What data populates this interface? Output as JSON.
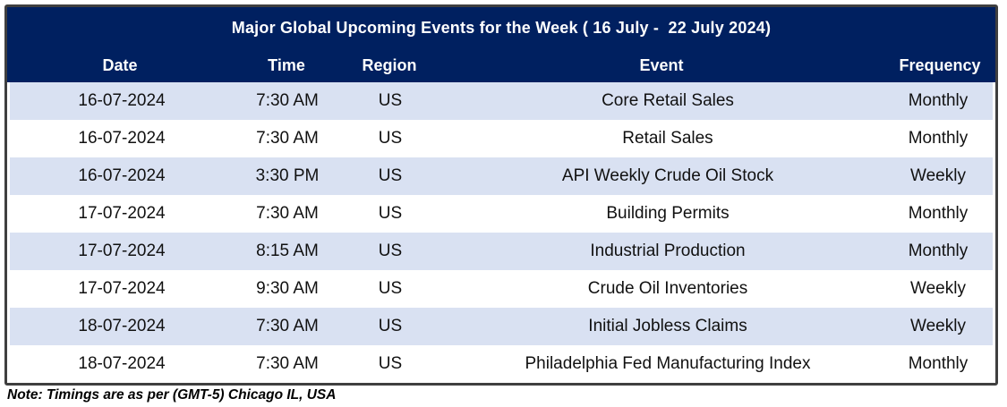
{
  "table": {
    "title": "Major Global Upcoming Events for the Week ( 16 July -  22 July 2024)",
    "columns": [
      "Date",
      "Time",
      "Region",
      "Event",
      "Frequency"
    ],
    "rows": [
      {
        "date": "16-07-2024",
        "time": "7:30 AM",
        "region": "US",
        "event": "Core Retail Sales",
        "frequency": "Monthly"
      },
      {
        "date": "16-07-2024",
        "time": "7:30 AM",
        "region": "US",
        "event": "Retail Sales",
        "frequency": "Monthly"
      },
      {
        "date": "16-07-2024",
        "time": "3:30 PM",
        "region": "US",
        "event": "API Weekly Crude Oil Stock",
        "frequency": "Weekly"
      },
      {
        "date": "17-07-2024",
        "time": "7:30 AM",
        "region": "US",
        "event": "Building Permits",
        "frequency": "Monthly"
      },
      {
        "date": "17-07-2024",
        "time": "8:15 AM",
        "region": "US",
        "event": "Industrial Production",
        "frequency": "Monthly"
      },
      {
        "date": "17-07-2024",
        "time": "9:30 AM",
        "region": "US",
        "event": "Crude Oil Inventories",
        "frequency": "Weekly"
      },
      {
        "date": "18-07-2024",
        "time": "7:30 AM",
        "region": "US",
        "event": "Initial Jobless Claims",
        "frequency": "Weekly"
      },
      {
        "date": "18-07-2024",
        "time": "7:30 AM",
        "region": "US",
        "event": "Philadelphia Fed Manufacturing Index",
        "frequency": "Monthly"
      }
    ]
  },
  "note": "Note: Timings are as per (GMT-5) Chicago IL, USA",
  "colors": {
    "header_bg": "#002060",
    "alt_row_bg": "#d9e1f2",
    "border": "#3f3f3f",
    "cell_text": "#111111"
  }
}
